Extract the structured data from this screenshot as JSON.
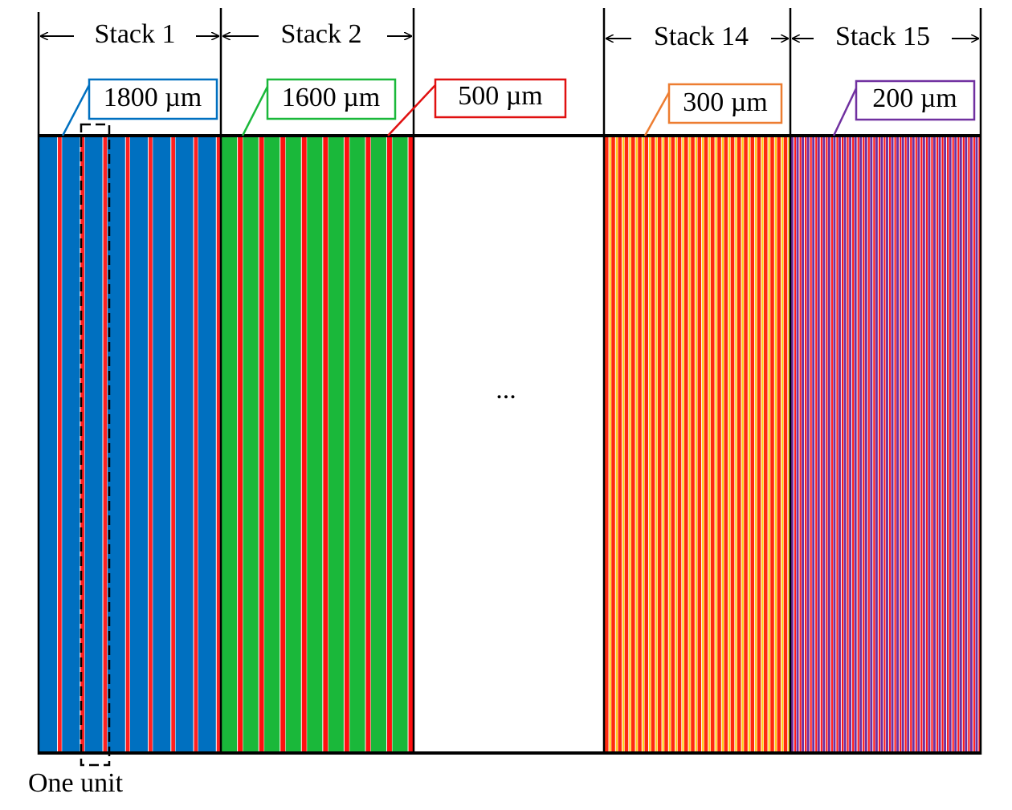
{
  "stacks": [
    {
      "label": "Stack 1"
    },
    {
      "label": "Stack 2"
    },
    {
      "label": "Stack 14"
    },
    {
      "label": "Stack 15"
    }
  ],
  "annotations": [
    {
      "label": "1800 µm"
    },
    {
      "label": "1600 µm"
    },
    {
      "label": "500 µm"
    },
    {
      "label": "300 µm"
    },
    {
      "label": "200 µm"
    }
  ],
  "ellipsis": "...",
  "unit_label": "One unit"
}
